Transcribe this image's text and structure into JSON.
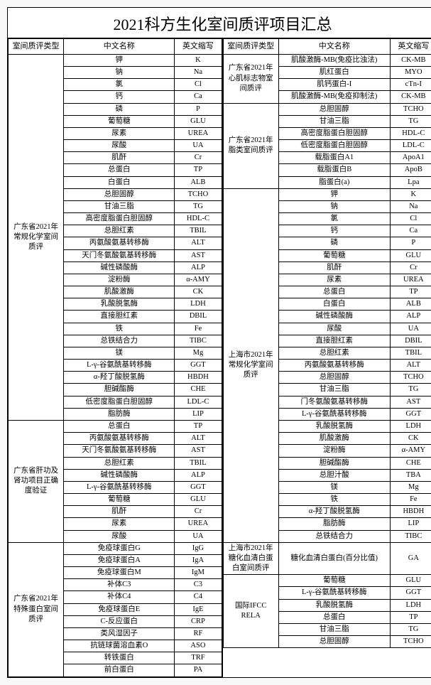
{
  "title": "2021科方生化室间质评项目汇总",
  "headers": {
    "type": "室间质评类型",
    "cn": "中文名称",
    "en": "英文缩写"
  },
  "left": [
    {
      "group": "广东省2021年常规化学室间质评",
      "rows": [
        [
          "钾",
          "K"
        ],
        [
          "钠",
          "Na"
        ],
        [
          "氯",
          "Cl"
        ],
        [
          "钙",
          "Ca"
        ],
        [
          "磷",
          "P"
        ],
        [
          "葡萄糖",
          "GLU"
        ],
        [
          "尿素",
          "UREA"
        ],
        [
          "尿酸",
          "UA"
        ],
        [
          "肌酐",
          "Cr"
        ],
        [
          "总蛋白",
          "TP"
        ],
        [
          "白蛋白",
          "ALB"
        ],
        [
          "总胆固醇",
          "TCHO"
        ],
        [
          "甘油三脂",
          "TG"
        ],
        [
          "高密度脂蛋白胆固醇",
          "HDL-C"
        ],
        [
          "总胆红素",
          "TBIL"
        ],
        [
          "丙氨酸氨基转移酶",
          "ALT"
        ],
        [
          "天门冬氨酸氨基转移酶",
          "AST"
        ],
        [
          "碱性磷酸酶",
          "ALP"
        ],
        [
          "淀粉酶",
          "α-AMY"
        ],
        [
          "肌酸激酶",
          "CK"
        ],
        [
          "乳酸脱氢酶",
          "LDH"
        ],
        [
          "直接胆红素",
          "DBIL"
        ],
        [
          "铁",
          "Fe"
        ],
        [
          "总铁结合力",
          "TIBC"
        ],
        [
          "镁",
          "Mg"
        ],
        [
          "L-γ-谷氨酰基转移酶",
          "GGT"
        ],
        [
          "α-羟丁酸脱氢酶",
          "HBDH"
        ],
        [
          "胆碱酯酶",
          "CHE"
        ],
        [
          "低密度脂蛋白胆固醇",
          "LDL-C"
        ],
        [
          "脂肪酶",
          "LIP"
        ]
      ]
    },
    {
      "group": "广东省肝功及肾功项目正确度验证",
      "rows": [
        [
          "总蛋白",
          "TP"
        ],
        [
          "丙氨酸氨基转移酶",
          "ALT"
        ],
        [
          "天门冬氨酸氨基转移酶",
          "AST"
        ],
        [
          "总胆红素",
          "TBIL"
        ],
        [
          "碱性磷酸酶",
          "ALP"
        ],
        [
          "L-γ-谷氨酰基转移酶",
          "GGT"
        ],
        [
          "葡萄糖",
          "GLU"
        ],
        [
          "肌酐",
          "Cr"
        ],
        [
          "尿素",
          "UREA"
        ],
        [
          "尿酸",
          "UA"
        ]
      ]
    },
    {
      "group": "广东省2021年特殊蛋白室间质评",
      "rows": [
        [
          "免疫球蛋白G",
          "IgG"
        ],
        [
          "免疫球蛋白A",
          "IgA"
        ],
        [
          "免疫球蛋白M",
          "IgM"
        ],
        [
          "补体C3",
          "C3"
        ],
        [
          "补体C4",
          "C4"
        ],
        [
          "免疫球蛋白E",
          "IgE"
        ],
        [
          "C-反应蛋白",
          "CRP"
        ],
        [
          "类风湿因子",
          "RF"
        ],
        [
          "抗链球菌溶血素O",
          "ASO"
        ],
        [
          "转铁蛋白",
          "TRF"
        ],
        [
          "前白蛋白",
          "PA"
        ]
      ]
    }
  ],
  "right": [
    {
      "group": "广东省2021年心肌标志物室间质评",
      "rows": [
        [
          "肌酸激酶-MB(免疫比浊法)",
          "CK-MB"
        ],
        [
          "肌红蛋白",
          "MYO"
        ],
        [
          "肌钙蛋白-I",
          "cTn-I"
        ],
        [
          "肌酸激酶-MB(免疫抑制法)",
          "CK-MB"
        ]
      ]
    },
    {
      "group": "广东省2021年脂类室间质评",
      "rows": [
        [
          "总胆固醇",
          "TCHO"
        ],
        [
          "甘油三脂",
          "TG"
        ],
        [
          "高密度脂蛋白胆固醇",
          "HDL-C"
        ],
        [
          "低密度脂蛋白胆固醇",
          "LDL-C"
        ],
        [
          "载脂蛋白A1",
          "ApoA1"
        ],
        [
          "载脂蛋白B",
          "ApoB"
        ],
        [
          "脂蛋白(a)",
          "Lpa"
        ]
      ]
    },
    {
      "group": "上海市2021年常规化学室间质评",
      "rows": [
        [
          "钾",
          "K"
        ],
        [
          "钠",
          "Na"
        ],
        [
          "氯",
          "Cl"
        ],
        [
          "钙",
          "Ca"
        ],
        [
          "磷",
          "P"
        ],
        [
          "葡萄糖",
          "GLU"
        ],
        [
          "肌酐",
          "Cr"
        ],
        [
          "尿素",
          "UREA"
        ],
        [
          "总蛋白",
          "TP"
        ],
        [
          "白蛋白",
          "ALB"
        ],
        [
          "碱性磷酸酶",
          "ALP"
        ],
        [
          "尿酸",
          "UA"
        ],
        [
          "直接胆红素",
          "DBIL"
        ],
        [
          "总胆红素",
          "TBIL"
        ],
        [
          "丙氨酸氨基转移酶",
          "ALT"
        ],
        [
          "总胆固醇",
          "TCHO"
        ],
        [
          "甘油三脂",
          "TG"
        ],
        [
          "门冬氨酸氨基转移酶",
          "AST"
        ],
        [
          "L-γ-谷氨酰基转移酶",
          "GGT"
        ],
        [
          "乳酸脱氢酶",
          "LDH"
        ],
        [
          "肌酸激酶",
          "CK"
        ],
        [
          "淀粉酶",
          "α-AMY"
        ],
        [
          "胆碱酯酶",
          "CHE"
        ],
        [
          "总胆汁酸",
          "TBA"
        ],
        [
          "镁",
          "Mg"
        ],
        [
          "铁",
          "Fe"
        ],
        [
          "α-羟丁酸脱氢酶",
          "HBDH"
        ],
        [
          "脂肪酶",
          "LIP"
        ],
        [
          "总铁结合力",
          "TIBC"
        ]
      ]
    },
    {
      "group": "上海市2021年糖化血清白蛋白室间质评",
      "rows": [
        [
          "糖化血清白蛋白(百分比值)",
          "GA"
        ]
      ]
    },
    {
      "group": "国际IFCC RELA",
      "rows": [
        [
          "葡萄糖",
          "GLU"
        ],
        [
          "L-γ-谷氨酰基转移酶",
          "GGT"
        ],
        [
          "乳酸脱氢酶",
          "LDH"
        ],
        [
          "总蛋白",
          "TP"
        ],
        [
          "甘油三脂",
          "TG"
        ],
        [
          "总胆固醇",
          "TCHO"
        ]
      ]
    }
  ]
}
